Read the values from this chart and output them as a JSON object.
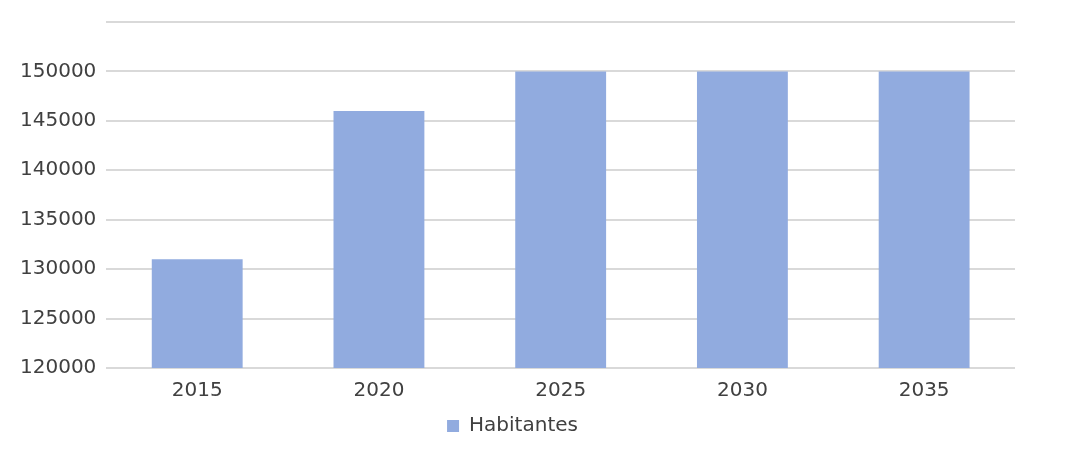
{
  "chart_data": {
    "type": "bar",
    "categories": [
      "2015",
      "2020",
      "2025",
      "2030",
      "2035"
    ],
    "series": [
      {
        "name": "Habitantes",
        "color": "#91abdf",
        "values": [
          131000,
          146000,
          150000,
          150000,
          150000
        ]
      }
    ],
    "ylim": [
      120000,
      155000
    ],
    "yticks": [
      120000,
      125000,
      130000,
      135000,
      140000,
      145000,
      150000,
      {
        "value": 155000,
        "label": null
      }
    ],
    "grid": "y",
    "legend": "bottom"
  }
}
